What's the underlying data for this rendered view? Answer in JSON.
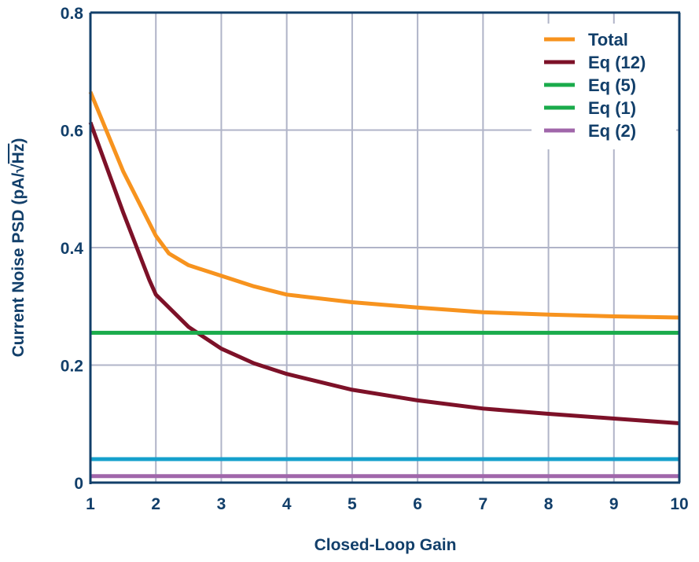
{
  "chart_data": {
    "type": "line",
    "title": "",
    "xlabel": "Closed-Loop Gain",
    "ylabel_prefix": "Current Noise PSD (pA/",
    "ylabel_radical": "√",
    "ylabel_radicand": "Hz",
    "ylabel_suffix": ")",
    "xlim": [
      1,
      10
    ],
    "ylim": [
      0,
      0.8
    ],
    "xticks": [
      "1",
      "2",
      "3",
      "4",
      "5",
      "6",
      "7",
      "8",
      "9",
      "10"
    ],
    "yticks": [
      "0",
      "0.2",
      "0.4",
      "0.6",
      "0.8"
    ],
    "grid": true,
    "legend_position": "top-right",
    "series": [
      {
        "name": "Total",
        "color": "#f7931e",
        "x": [
          1,
          1.5,
          2,
          2.2,
          2.5,
          3,
          3.5,
          4,
          5,
          6,
          7,
          8,
          9,
          10
        ],
        "y": [
          0.665,
          0.53,
          0.42,
          0.39,
          0.37,
          0.352,
          0.334,
          0.32,
          0.307,
          0.298,
          0.29,
          0.286,
          0.283,
          0.281
        ]
      },
      {
        "name": "Eq (12)",
        "color": "#7d1128",
        "x": [
          1,
          1.5,
          1.9,
          2,
          2.5,
          3,
          3.5,
          4,
          5,
          6,
          7,
          8,
          9,
          10
        ],
        "y": [
          0.613,
          0.46,
          0.345,
          0.32,
          0.265,
          0.228,
          0.203,
          0.185,
          0.158,
          0.14,
          0.126,
          0.117,
          0.109,
          0.101
        ]
      },
      {
        "name": "Eq (5)",
        "color": "#1aab4b",
        "x": [
          1,
          10
        ],
        "y": [
          0.255,
          0.255
        ]
      },
      {
        "name": "Eq (1)",
        "color": "#16a0cc",
        "legend_color": "#1aab4b",
        "x": [
          1,
          10
        ],
        "y": [
          0.04,
          0.04
        ]
      },
      {
        "name": "Eq (2)",
        "color": "#a066aa",
        "x": [
          1,
          10
        ],
        "y": [
          0.011,
          0.011
        ]
      }
    ]
  }
}
